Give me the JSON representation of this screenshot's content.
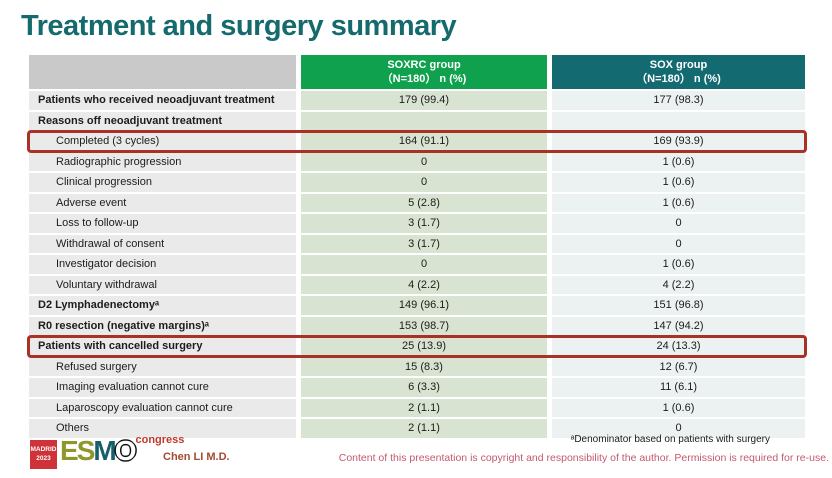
{
  "title": "Treatment and surgery summary",
  "colors": {
    "title_teal": "#156a6e",
    "header_green": "#10a14e",
    "header_teal": "#136a70",
    "highlight_red": "#a93226",
    "soxrc_cell_bg": "#d9e3d2",
    "sox_cell_bg": "#ebf2f1"
  },
  "table": {
    "header": {
      "first": "",
      "soxrc_line1": "SOXRC group",
      "soxrc_line2": "（N=180） n (%)",
      "sox_line1": "SOX group",
      "sox_line2": "（N=180） n (%)"
    },
    "rows": [
      {
        "label": "Patients who received neoadjuvant treatment",
        "soxrc": "179 (99.4)",
        "sox": "177 (98.3)"
      },
      {
        "label": "Reasons off neoadjuvant treatment",
        "soxrc": "",
        "sox": ""
      },
      {
        "label": "Completed (3 cycles)",
        "soxrc": "164 (91.1)",
        "sox": "169 (93.9)"
      },
      {
        "label": "Radiographic progression",
        "soxrc": "0",
        "sox": "1 (0.6)"
      },
      {
        "label": "Clinical progression",
        "soxrc": "0",
        "sox": "1 (0.6)"
      },
      {
        "label": "Adverse event",
        "soxrc": "5 (2.8)",
        "sox": "1 (0.6)"
      },
      {
        "label": "Loss to follow-up",
        "soxrc": "3 (1.7)",
        "sox": "0"
      },
      {
        "label": "Withdrawal of consent",
        "soxrc": "3 (1.7)",
        "sox": "0"
      },
      {
        "label": "Investigator decision",
        "soxrc": "0",
        "sox": "1 (0.6)"
      },
      {
        "label": "Voluntary withdrawal",
        "soxrc": "4 (2.2)",
        "sox": "4 (2.2)"
      },
      {
        "label": "D2 Lymphadenectomyᵃ",
        "soxrc": "149 (96.1)",
        "sox": "151 (96.8)"
      },
      {
        "label": "R0 resection (negative margins)ᵃ",
        "soxrc": "153 (98.7)",
        "sox": "147 (94.2)"
      },
      {
        "label": "Patients with cancelled surgery",
        "soxrc": "25 (13.9)",
        "sox": "24 (13.3)"
      },
      {
        "label": "Refused surgery",
        "soxrc": "15 (8.3)",
        "sox": "12 (6.7)"
      },
      {
        "label": "Imaging evaluation cannot cure",
        "soxrc": "6 (3.3)",
        "sox": "11 (6.1)"
      },
      {
        "label": "Laparoscopy evaluation cannot cure",
        "soxrc": "2 (1.1)",
        "sox": "1 (0.6)"
      },
      {
        "label": "Others",
        "soxrc": "2 (1.1)",
        "sox": "0"
      }
    ]
  },
  "footer": {
    "logo": {
      "city": "MADRID",
      "year": "2023",
      "e": "E",
      "s": "S",
      "m": "M",
      "o": "O",
      "congress": "congress"
    },
    "presenter": "Chen LI M.D.",
    "footnote": "ᵃDenominator based on patients with surgery",
    "copyright": "Content of this presentation is copyright and responsibility of the author. Permission is required for re-use."
  }
}
